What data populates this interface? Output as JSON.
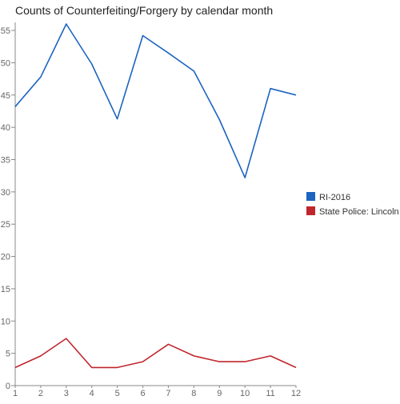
{
  "chart_data": {
    "type": "line",
    "title": "Counts of Counterfeiting/Forgery by calendar month",
    "xlabel": "",
    "ylabel": "",
    "x": [
      1,
      2,
      3,
      4,
      5,
      6,
      7,
      8,
      9,
      10,
      11,
      12
    ],
    "xlim": [
      1,
      12
    ],
    "ylim": [
      0,
      56
    ],
    "yticks": [
      0,
      5,
      10,
      15,
      20,
      25,
      30,
      35,
      40,
      45,
      50,
      55
    ],
    "grid": false,
    "legend_position": "right",
    "series": [
      {
        "name": "RI-2016",
        "color": "#1c64c0",
        "values": [
          43.2,
          47.8,
          56.0,
          49.8,
          41.3,
          54.2,
          51.5,
          48.7,
          41.2,
          32.2,
          46.0,
          45.0
        ]
      },
      {
        "name": "State Police: Lincoln",
        "color": "#c0262c",
        "values": [
          2.8,
          4.6,
          7.3,
          2.8,
          2.8,
          3.7,
          6.4,
          4.6,
          3.7,
          3.7,
          4.6,
          2.8
        ]
      }
    ]
  }
}
